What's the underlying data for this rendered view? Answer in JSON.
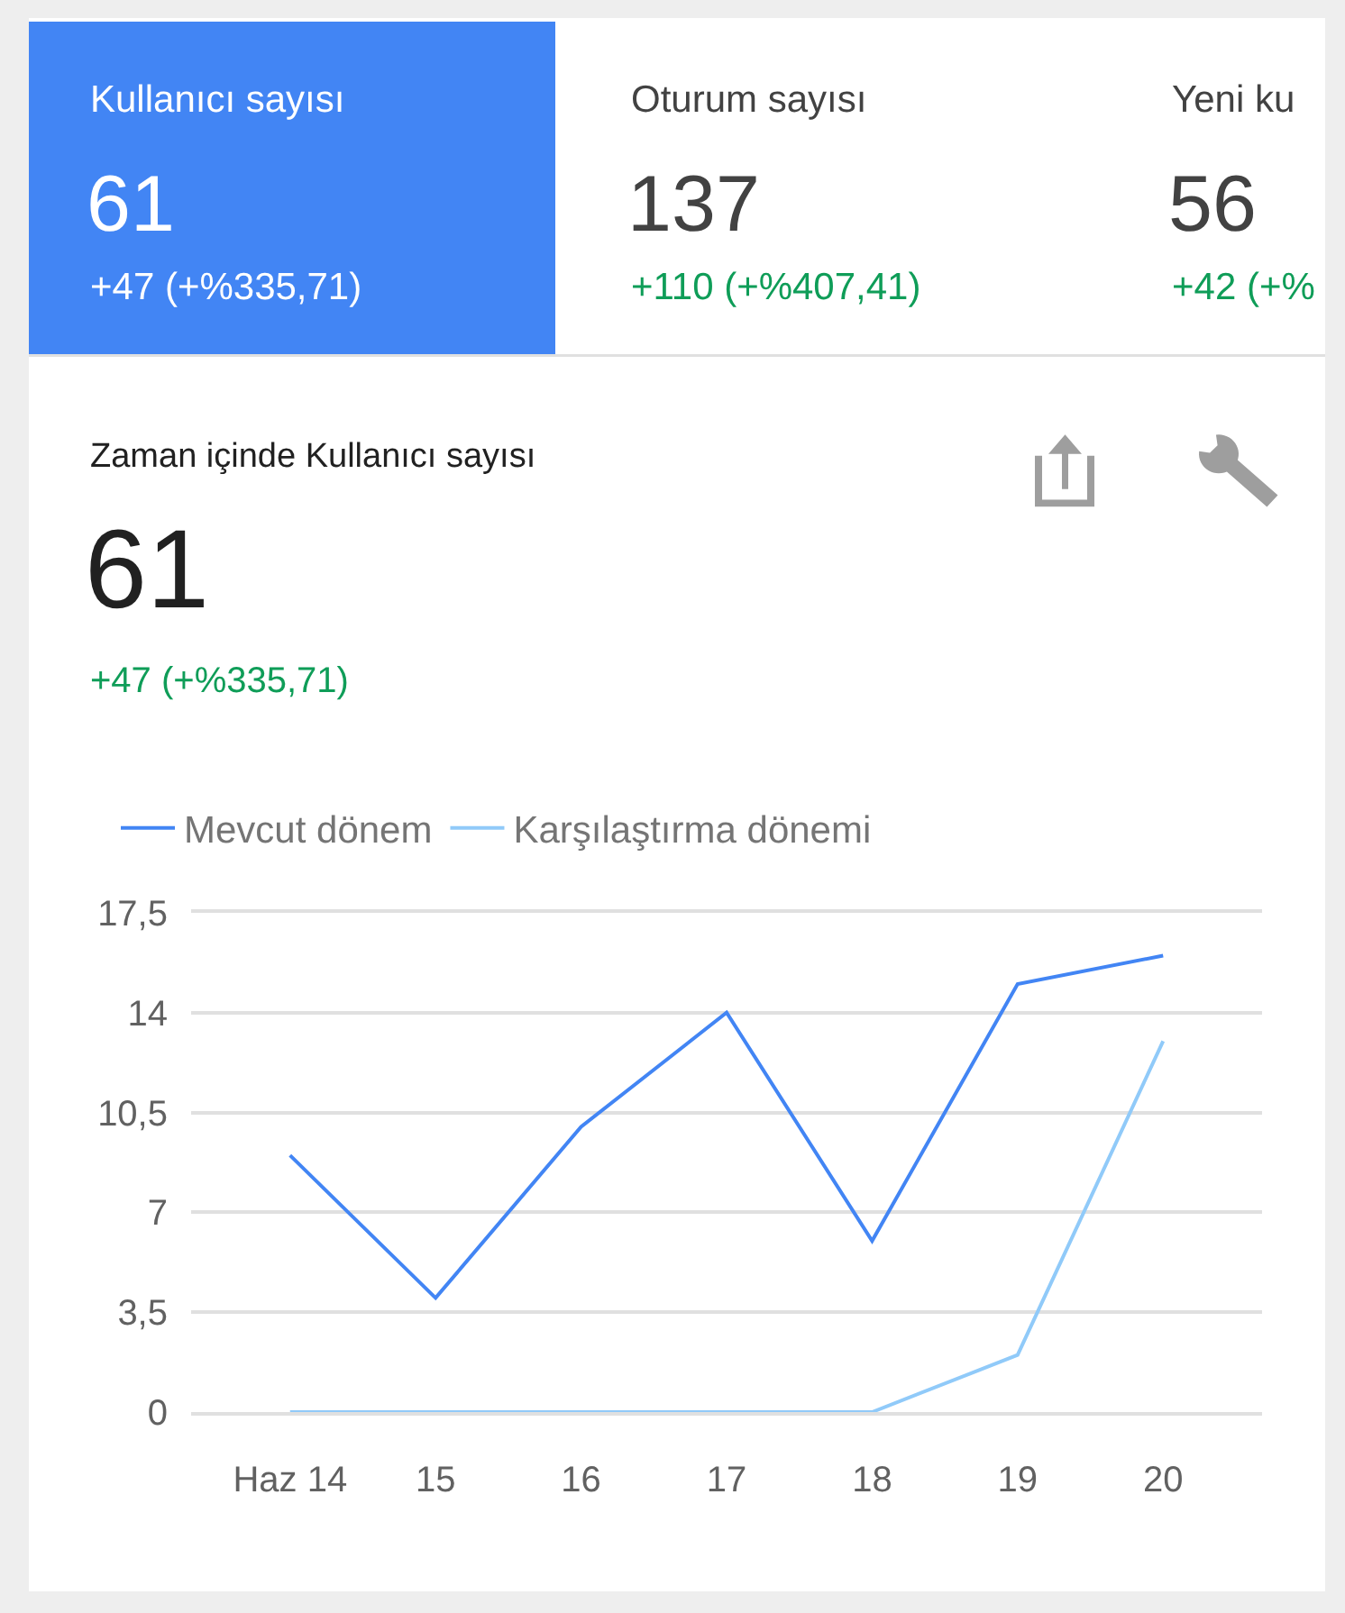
{
  "chart_data": [
    {
      "type": "other",
      "title": "Kullanıcı sayısı",
      "subtitle": "61",
      "annotations": [
        "+47 (+%335,71)"
      ]
    },
    {
      "type": "other",
      "title": "Oturum sayısı",
      "subtitle": "137",
      "annotations": [
        "+110 (+%407,41)"
      ]
    },
    {
      "type": "other",
      "title": "Yeni ku",
      "subtitle": "56",
      "annotations": [
        "+42 (+%"
      ]
    },
    {
      "type": "line",
      "title": "Zaman içinde Kullanıcı sayısı",
      "subtitle": "61",
      "annotations": [
        "+47 (+%335,71)"
      ],
      "categories": [
        "Haz 14",
        "15",
        "16",
        "17",
        "18",
        "19",
        "20"
      ],
      "series": [
        {
          "name": "Mevcut dönem",
          "color": "#4285f4",
          "values": [
            9,
            4,
            10,
            14,
            6,
            15,
            16
          ]
        },
        {
          "name": "Karşılaştırma dönemi",
          "color": "#90caf9",
          "values": [
            0,
            0,
            0,
            0,
            0,
            2,
            13
          ]
        }
      ],
      "ylim": [
        0,
        17.5
      ],
      "yticks": [
        0,
        {
          "value": 3.5,
          "label": "3,5"
        },
        7,
        {
          "value": 10.5,
          "label": "10,5"
        },
        14,
        {
          "value": 17.5,
          "label": "17,5"
        }
      ],
      "grid": "y",
      "legend": "top left"
    }
  ]
}
